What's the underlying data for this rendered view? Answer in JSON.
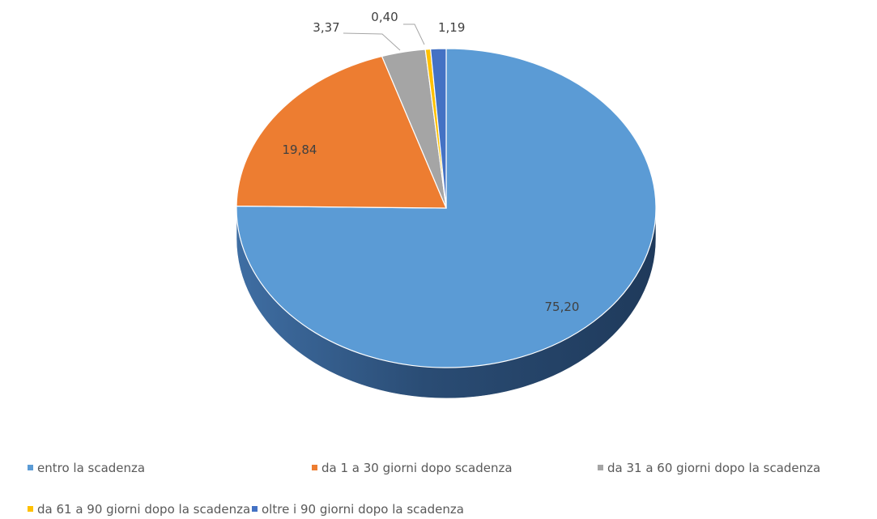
{
  "chart_data": {
    "type": "pie",
    "style": "3d",
    "title": "",
    "categories": [
      "entro la scadenza",
      "da 1 a 30 giorni dopo scadenza",
      "da 31 a 60 giorni dopo la scadenza",
      "da 61 a 90 giorni dopo la scadenza",
      "oltre i 90 giorni dopo la scadenza"
    ],
    "values": [
      75.2,
      19.84,
      3.37,
      0.4,
      1.19
    ],
    "value_labels": [
      "75,20",
      "19,84",
      "3,37",
      "0,40",
      "1,19"
    ],
    "colors": [
      "#5b9bd5",
      "#ed7d31",
      "#a5a5a5",
      "#ffc000",
      "#4472c4"
    ],
    "side_colors": [
      "#2e5580",
      "#a85520",
      "#6f6f6f",
      "#b38600",
      "#2c4d8a"
    ],
    "legend_position": "bottom"
  }
}
